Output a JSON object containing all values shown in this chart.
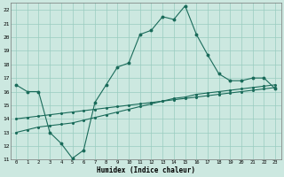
{
  "xlabel": "Humidex (Indice chaleur)",
  "background_color": "#cce8e0",
  "grid_color": "#99ccc0",
  "line_color": "#1a6b5a",
  "xlim": [
    -0.5,
    23.5
  ],
  "ylim": [
    11,
    22.5
  ],
  "yticks": [
    11,
    12,
    13,
    14,
    15,
    16,
    17,
    18,
    19,
    20,
    21,
    22
  ],
  "xticks": [
    0,
    1,
    2,
    3,
    4,
    5,
    6,
    7,
    8,
    9,
    10,
    11,
    12,
    13,
    14,
    15,
    16,
    17,
    18,
    19,
    20,
    21,
    22,
    23
  ],
  "line1_x": [
    0,
    1,
    2,
    3,
    4,
    5,
    6,
    7,
    8,
    9,
    10,
    11,
    12,
    13,
    14,
    15,
    16,
    17,
    18,
    19,
    20,
    21,
    22,
    23
  ],
  "line1_y": [
    16.5,
    16.0,
    16.0,
    13.0,
    12.2,
    11.1,
    11.7,
    15.2,
    16.5,
    17.8,
    18.1,
    20.2,
    20.5,
    21.5,
    21.3,
    22.3,
    20.2,
    18.7,
    17.3,
    16.8,
    16.8,
    17.0,
    17.0,
    16.2
  ],
  "line2_x": [
    0,
    1,
    2,
    3,
    4,
    5,
    6,
    7,
    8,
    9,
    10,
    11,
    12,
    13,
    14,
    15,
    16,
    17,
    18,
    19,
    20,
    21,
    22,
    23
  ],
  "line2_y": [
    13.0,
    13.2,
    13.4,
    13.5,
    13.6,
    13.7,
    13.9,
    14.1,
    14.3,
    14.5,
    14.7,
    14.9,
    15.1,
    15.3,
    15.5,
    15.6,
    15.8,
    15.9,
    16.0,
    16.1,
    16.2,
    16.3,
    16.4,
    16.5
  ],
  "line3_x": [
    0,
    1,
    2,
    3,
    4,
    5,
    6,
    7,
    8,
    9,
    10,
    11,
    12,
    13,
    14,
    15,
    16,
    17,
    18,
    19,
    20,
    21,
    22,
    23
  ],
  "line3_y": [
    14.0,
    14.1,
    14.2,
    14.3,
    14.4,
    14.5,
    14.6,
    14.7,
    14.8,
    14.9,
    15.0,
    15.1,
    15.2,
    15.3,
    15.4,
    15.5,
    15.6,
    15.7,
    15.8,
    15.9,
    16.0,
    16.1,
    16.2,
    16.3
  ]
}
